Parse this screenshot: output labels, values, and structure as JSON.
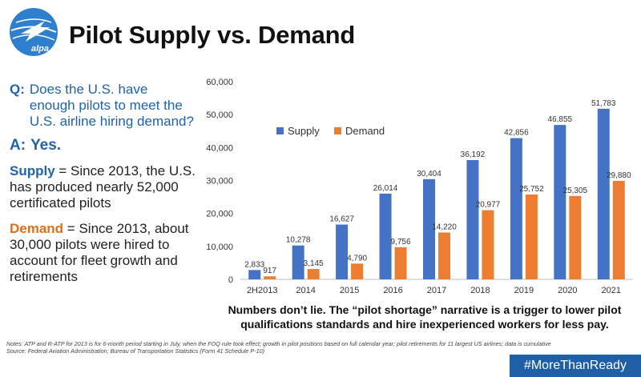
{
  "header": {
    "title": "Pilot Supply vs. Demand",
    "logo_text": "alpa"
  },
  "left": {
    "question_label": "Q:",
    "question_text": "Does the U.S. have enough  pilots to meet the U.S. airline hiring demand?",
    "answer_label": "A:",
    "answer_text": "Yes.",
    "supply_label": "Supply",
    "supply_text": " = Since 2013, the U.S. has produced nearly 52,000 certificated pilots",
    "demand_label": "Demand",
    "demand_text": " = Since 2013, about 30,000 pilots were hired to account for fleet growth and retirements"
  },
  "chart_data": {
    "type": "bar",
    "categories": [
      "2H2013",
      "2014",
      "2015",
      "2016",
      "2017",
      "2018",
      "2019",
      "2020",
      "2021"
    ],
    "series": [
      {
        "name": "Supply",
        "color": "#4472c4",
        "values": [
          2833,
          10278,
          16627,
          26014,
          30404,
          36192,
          42856,
          46855,
          51783
        ]
      },
      {
        "name": "Demand",
        "color": "#ed7d31",
        "values": [
          917,
          3145,
          4790,
          9756,
          14220,
          20977,
          25752,
          25305,
          29880
        ]
      }
    ],
    "data_labels": {
      "Supply": [
        "2,833",
        "10,278",
        "16,627",
        "26,014",
        "30,404",
        "36,192",
        "42,856",
        "46,855",
        "51,783"
      ],
      "Demand": [
        "917",
        "3,145",
        "4,790",
        "9,756",
        "14,220",
        "20,977",
        "25,752",
        "25,305",
        "29,880"
      ]
    },
    "y_ticks": [
      "0",
      "10,000",
      "20,000",
      "30,000",
      "40,000",
      "50,000",
      "60,000"
    ],
    "ylim": [
      0,
      60000
    ],
    "legend_position": "top-left",
    "grid": false
  },
  "caption": "Numbers don’t lie. The “pilot shortage” narrative is a trigger to lower pilot qualifications standards and hire inexperienced workers for less pay.",
  "notes": {
    "line1": "Notes: ATP and R-ATP for 2013 is for 6-month period starting in July, when the FOQ rule took effect; growth in pilot positions based on full calendar year; pilot retirements for 11 largest US airlines; data is cumulative",
    "line2": "Source: Federal Aviation Administration; Bureau of Transportation Statistics (Form 41 Schedule P-10)"
  },
  "hashtag": "#MoreThanReady"
}
